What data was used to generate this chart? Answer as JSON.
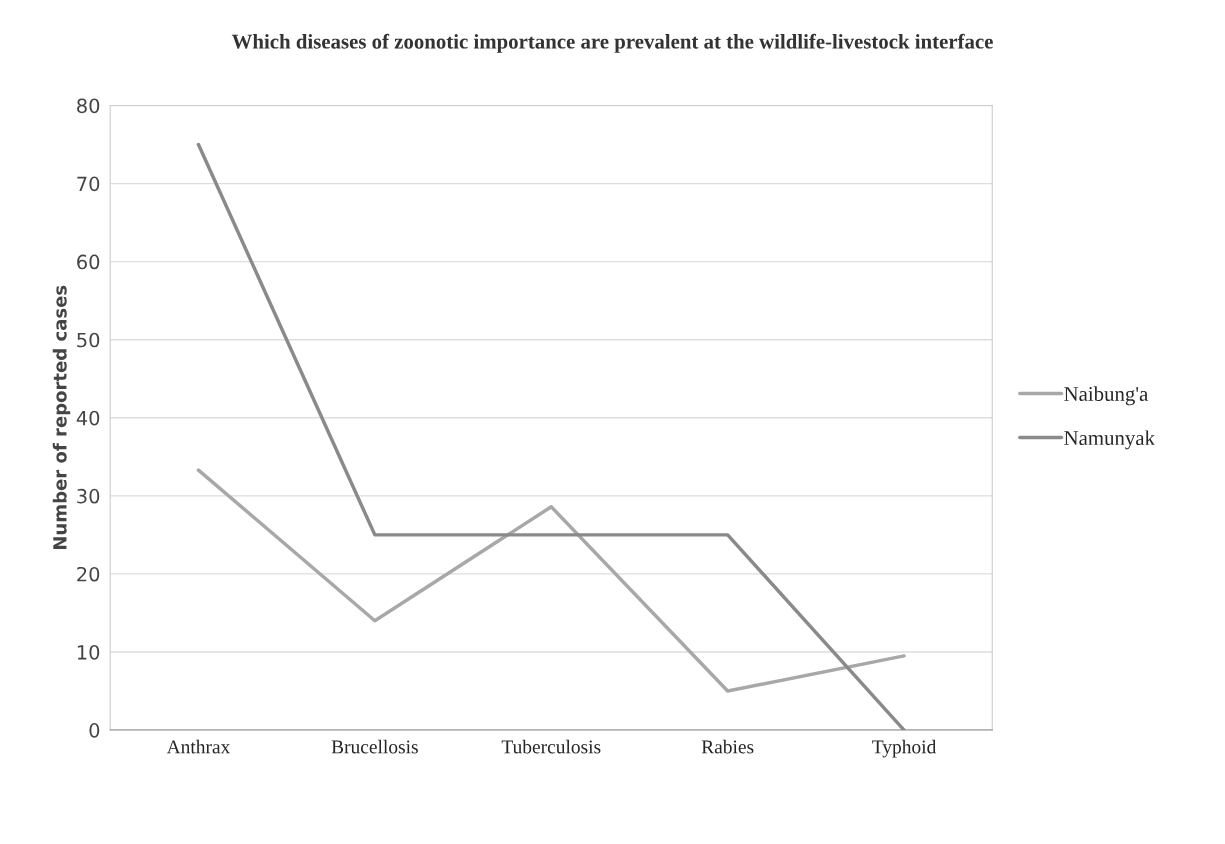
{
  "chart_data": {
    "type": "line",
    "title": "Which diseases of zoonotic importance are prevalent at the wildlife-livestock interface",
    "ylabel": "Number of reported cases",
    "categories": [
      "Anthrax",
      "Brucellosis",
      "Tuberculosis",
      "Rabies",
      "Typhoid"
    ],
    "series": [
      {
        "name": "Naibung'a",
        "color": "#a8a8a8",
        "values": [
          33.3,
          14,
          28.6,
          5,
          9.5
        ]
      },
      {
        "name": "Namunyak",
        "color": "#8a8a8a",
        "values": [
          75,
          25,
          25,
          25,
          0
        ]
      }
    ],
    "ylim": [
      0,
      80
    ],
    "yticks": [
      0,
      10,
      20,
      30,
      40,
      50,
      60,
      70,
      80
    ],
    "grid": "y",
    "legend": "right",
    "marker": "none",
    "line_style": "solid"
  }
}
